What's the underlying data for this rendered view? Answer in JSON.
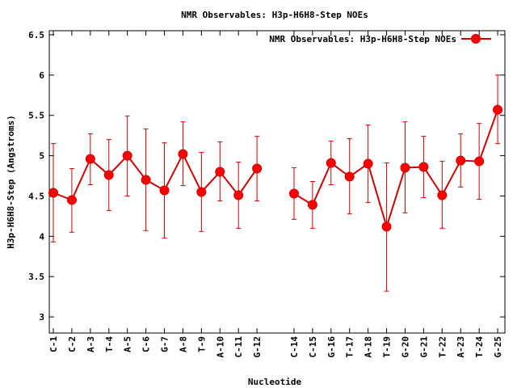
{
  "chart_data": {
    "type": "line",
    "title": "NMR Observables: H3p-H6H8-Step NOEs",
    "xlabel": "Nucleotide",
    "ylabel": "H3p-H6H8-Step (Angstroms)",
    "ylim": [
      2.8,
      6.55
    ],
    "yticks": [
      3,
      3.5,
      4,
      4.5,
      5,
      5.5,
      6,
      6.5
    ],
    "ytick_labels": [
      "3",
      "3.5",
      "4",
      "4.5",
      "5",
      "5.5",
      "6",
      "6.5"
    ],
    "legend_position": "top-right",
    "grid": false,
    "series": [
      {
        "name": "NMR Observables: H3p-H6H8-Step NOEs",
        "color": "#ff0000",
        "line_color": "#cc0000",
        "errorbar_color": "#cc0000",
        "points": [
          {
            "x": "C-1",
            "y": 4.54,
            "low": 3.93,
            "high": 5.15
          },
          {
            "x": "C-2",
            "y": 4.45,
            "low": 4.05,
            "high": 4.84
          },
          {
            "x": "A-3",
            "y": 4.96,
            "low": 4.64,
            "high": 5.27
          },
          {
            "x": "T-4",
            "y": 4.76,
            "low": 4.32,
            "high": 5.2
          },
          {
            "x": "A-5",
            "y": 5.0,
            "low": 4.5,
            "high": 5.49
          },
          {
            "x": "C-6",
            "y": 4.7,
            "low": 4.07,
            "high": 5.33
          },
          {
            "x": "G-7",
            "y": 4.57,
            "low": 3.98,
            "high": 5.16
          },
          {
            "x": "A-8",
            "y": 5.02,
            "low": 4.63,
            "high": 5.42
          },
          {
            "x": "T-9",
            "y": 4.55,
            "low": 4.06,
            "high": 5.04
          },
          {
            "x": "A-10",
            "y": 4.8,
            "low": 4.44,
            "high": 5.17
          },
          {
            "x": "C-11",
            "y": 4.51,
            "low": 4.1,
            "high": 4.92
          },
          {
            "x": "G-12",
            "y": 4.84,
            "low": 4.44,
            "high": 5.24
          },
          {
            "x": "C-14",
            "y": 4.53,
            "low": 4.21,
            "high": 4.85
          },
          {
            "x": "C-15",
            "y": 4.39,
            "low": 4.1,
            "high": 4.68
          },
          {
            "x": "G-16",
            "y": 4.91,
            "low": 4.64,
            "high": 5.18
          },
          {
            "x": "T-17",
            "y": 4.74,
            "low": 4.28,
            "high": 5.21
          },
          {
            "x": "A-18",
            "y": 4.9,
            "low": 4.42,
            "high": 5.38
          },
          {
            "x": "T-19",
            "y": 4.12,
            "low": 3.32,
            "high": 4.91
          },
          {
            "x": "G-20",
            "y": 4.85,
            "low": 4.29,
            "high": 5.42
          },
          {
            "x": "G-21",
            "y": 4.86,
            "low": 4.48,
            "high": 5.24
          },
          {
            "x": "T-22",
            "y": 4.51,
            "low": 4.1,
            "high": 4.93
          },
          {
            "x": "A-23",
            "y": 4.94,
            "low": 4.61,
            "high": 5.27
          },
          {
            "x": "T-24",
            "y": 4.93,
            "low": 4.46,
            "high": 5.4
          },
          {
            "x": "G-25",
            "y": 5.57,
            "low": 5.15,
            "high": 6.0
          }
        ]
      }
    ]
  }
}
